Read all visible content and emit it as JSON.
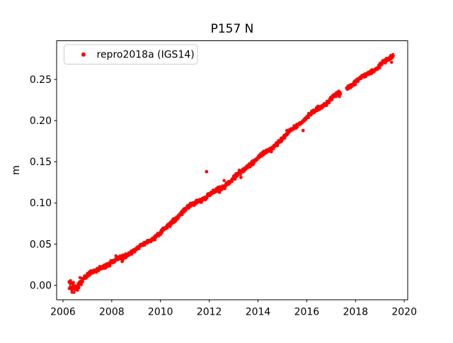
{
  "figure": {
    "background": "#ffffff"
  },
  "chart_data": {
    "type": "scatter",
    "title": "P157 N",
    "xlabel": "",
    "ylabel": "m",
    "xlim": [
      2005.74,
      2020.14
    ],
    "ylim": [
      -0.0176,
      0.297
    ],
    "xticks": [
      2006,
      2008,
      2010,
      2012,
      2014,
      2016,
      2018,
      2020
    ],
    "xtick_labels": [
      "2006",
      "2008",
      "2010",
      "2012",
      "2014",
      "2016",
      "2018",
      "2020"
    ],
    "yticks": [
      0.0,
      0.05,
      0.1,
      0.15,
      0.2,
      0.25
    ],
    "ytick_labels": [
      "0.00",
      "0.05",
      "0.10",
      "0.15",
      "0.20",
      "0.25"
    ],
    "grid": false,
    "legend": {
      "position": "upper left",
      "entries": [
        {
          "label": "repro2018a (IGS14)",
          "marker": "dot",
          "color": "#ff0000"
        }
      ]
    },
    "series": [
      {
        "name": "repro2018a (IGS14)",
        "color": "#ff0000",
        "marker": "circle",
        "marker_radius_px": 2.2,
        "start_year": 2006.25,
        "end_year": 2019.55,
        "sample_step_years": 0.01,
        "noise_std_m": 0.0012,
        "start_noise": {
          "until_year": 2006.78,
          "std_m": 0.003
        },
        "annual_wiggle_amplitude_m": 0.0009,
        "trend_anchors": [
          [
            2006.25,
            0.001
          ],
          [
            2006.4,
            -0.003
          ],
          [
            2006.55,
            -0.004
          ],
          [
            2006.7,
            0.005
          ],
          [
            2007.0,
            0.012
          ],
          [
            2007.5,
            0.02
          ],
          [
            2008.0,
            0.028
          ],
          [
            2008.5,
            0.035
          ],
          [
            2009.0,
            0.044
          ],
          [
            2009.5,
            0.053
          ],
          [
            2010.0,
            0.064
          ],
          [
            2010.5,
            0.077
          ],
          [
            2011.0,
            0.092
          ],
          [
            2011.5,
            0.101
          ],
          [
            2012.0,
            0.11
          ],
          [
            2012.5,
            0.118
          ],
          [
            2013.0,
            0.13
          ],
          [
            2013.5,
            0.142
          ],
          [
            2014.0,
            0.155
          ],
          [
            2014.5,
            0.165
          ],
          [
            2015.0,
            0.178
          ],
          [
            2015.5,
            0.192
          ],
          [
            2016.0,
            0.204
          ],
          [
            2016.5,
            0.215
          ],
          [
            2017.0,
            0.227
          ],
          [
            2017.38,
            0.234
          ],
          [
            2017.62,
            0.239
          ],
          [
            2018.0,
            0.247
          ],
          [
            2018.5,
            0.257
          ],
          [
            2019.0,
            0.267
          ],
          [
            2019.55,
            0.279
          ]
        ],
        "gaps": [
          [
            2017.38,
            2017.62
          ]
        ],
        "outliers": [
          [
            2008.43,
            0.029
          ],
          [
            2011.89,
            0.138
          ],
          [
            2012.42,
            0.113
          ],
          [
            2013.3,
            0.131
          ],
          [
            2015.85,
            0.188
          ]
        ]
      }
    ]
  }
}
